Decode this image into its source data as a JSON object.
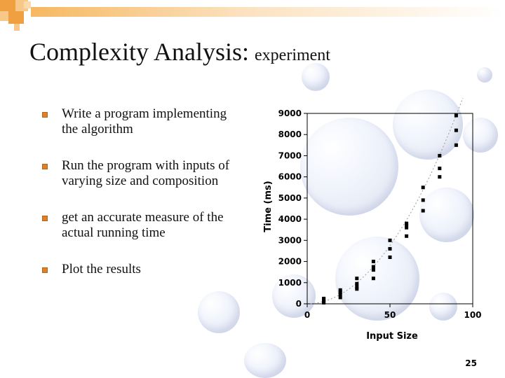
{
  "title": {
    "main": "Complexity Analysis:",
    "sub": "experiment"
  },
  "bullets": [
    {
      "lines": [
        "Write a program implementing",
        "the algorithm"
      ]
    },
    {
      "lines": [
        "Run the program with inputs of",
        "varying size and composition"
      ]
    },
    {
      "lines": [
        "get an accurate measure of the",
        "actual running time"
      ]
    },
    {
      "lines": [
        "Plot the results"
      ]
    }
  ],
  "colors": {
    "bullet": "#d9822b",
    "corner_orange": "#f0a040",
    "corner_light": "#f8c888",
    "chart_border": "#000000",
    "trend_line": "#999999"
  },
  "page_number": "25",
  "chart_data": {
    "type": "scatter",
    "title": "",
    "xlabel": "Input Size",
    "ylabel": "Time (ms)",
    "xlim": [
      0,
      100
    ],
    "ylim": [
      0,
      9000
    ],
    "x_ticks": [
      0,
      50,
      100
    ],
    "y_ticks": [
      0,
      1000,
      2000,
      3000,
      4000,
      5000,
      6000,
      7000,
      8000,
      9000
    ],
    "grid": false,
    "points": [
      [
        10,
        50
      ],
      [
        10,
        100
      ],
      [
        10,
        200
      ],
      [
        10,
        250
      ],
      [
        20,
        300
      ],
      [
        20,
        450
      ],
      [
        20,
        550
      ],
      [
        20,
        650
      ],
      [
        30,
        700
      ],
      [
        30,
        800
      ],
      [
        30,
        950
      ],
      [
        30,
        1200
      ],
      [
        40,
        1200
      ],
      [
        40,
        1600
      ],
      [
        40,
        1750
      ],
      [
        40,
        2000
      ],
      [
        50,
        2200
      ],
      [
        50,
        2600
      ],
      [
        50,
        3000
      ],
      [
        60,
        3200
      ],
      [
        60,
        3600
      ],
      [
        60,
        3700
      ],
      [
        60,
        3800
      ],
      [
        70,
        4400
      ],
      [
        70,
        4900
      ],
      [
        70,
        5500
      ],
      [
        80,
        6000
      ],
      [
        80,
        6400
      ],
      [
        80,
        7000
      ],
      [
        90,
        7500
      ],
      [
        90,
        8200
      ],
      [
        90,
        8900
      ]
    ],
    "trend_line": true
  }
}
